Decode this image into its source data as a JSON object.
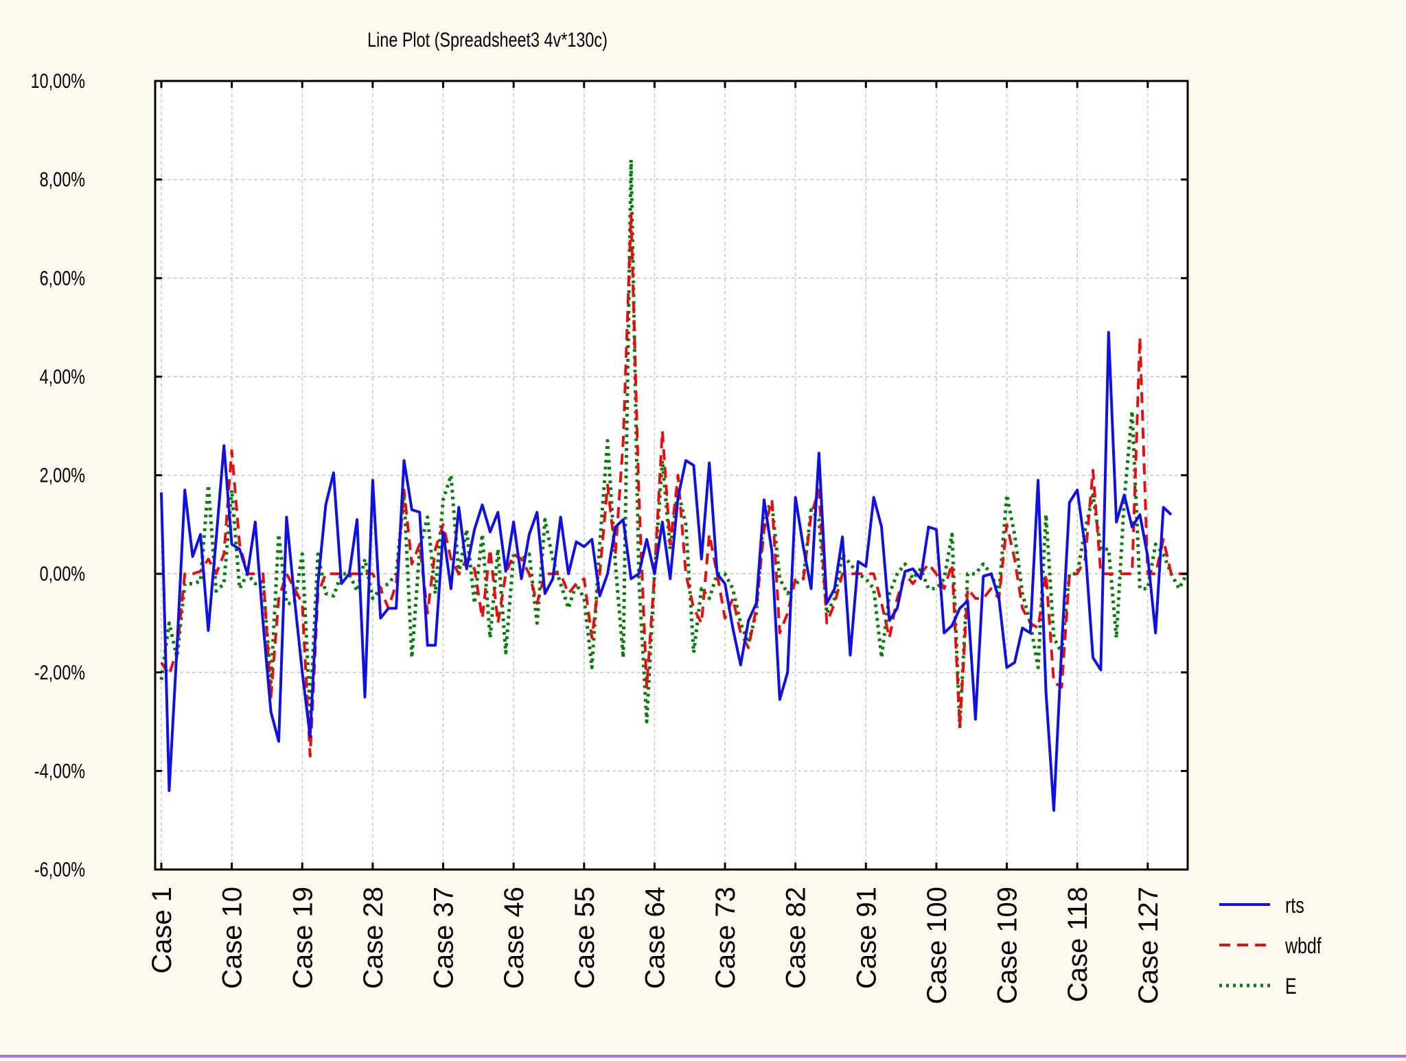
{
  "colors": {
    "background": "#fdf9ee",
    "rts": "#1010e0",
    "wbdf": "#e01010",
    "E": "#0a7a0a",
    "grid": "#c8c8c8"
  },
  "chart_data": {
    "type": "line",
    "title": "Line Plot (Spreadsheet3 4v*130c)",
    "xlabel": "",
    "ylabel": "",
    "ylim": [
      -6,
      10
    ],
    "y_ticks": [
      -6,
      -4,
      -2,
      0,
      2,
      4,
      6,
      8,
      10
    ],
    "y_tick_labels": [
      "-6,00%",
      "-4,00%",
      "-2,00%",
      "0,00%",
      "2,00%",
      "4,00%",
      "6,00%",
      "8,00%",
      "10,00%"
    ],
    "x_range": [
      1,
      130
    ],
    "x_ticks": [
      1,
      10,
      19,
      28,
      37,
      46,
      55,
      64,
      73,
      82,
      91,
      100,
      109,
      118,
      127
    ],
    "x_tick_labels": [
      "Case 1",
      "Case 10",
      "Case 19",
      "Case 28",
      "Case 37",
      "Case 46",
      "Case 55",
      "Case 64",
      "Case 73",
      "Case 82",
      "Case 91",
      "Case 100",
      "Case 109",
      "Case 118",
      "Case 127"
    ],
    "grid": true,
    "legend_position": "right",
    "series": [
      {
        "name": "rts",
        "style": "solid",
        "values": [
          1.65,
          -4.4,
          -1.5,
          1.7,
          0.35,
          0.8,
          -1.15,
          0.7,
          2.6,
          0.6,
          0.5,
          0.0,
          1.05,
          -1.0,
          -2.8,
          -3.4,
          1.15,
          -0.5,
          -2.0,
          -3.3,
          -0.2,
          1.4,
          2.05,
          -0.2,
          0.0,
          1.1,
          -2.5,
          1.9,
          -0.9,
          -0.7,
          -0.7,
          2.3,
          1.3,
          1.25,
          -1.45,
          -1.45,
          0.85,
          -0.3,
          1.35,
          0.1,
          0.9,
          1.4,
          0.85,
          1.25,
          0.05,
          1.05,
          -0.1,
          0.8,
          1.25,
          -0.4,
          -0.1,
          1.15,
          0.0,
          0.65,
          0.55,
          0.7,
          -0.45,
          0.0,
          0.95,
          1.1,
          -0.1,
          0.0,
          0.7,
          0.0,
          1.05,
          -0.1,
          1.55,
          2.3,
          2.2,
          0.3,
          2.25,
          0.0,
          -0.2,
          -1.1,
          -1.85,
          -0.95,
          -0.6,
          1.5,
          0.45,
          -2.55,
          -2.0,
          1.55,
          0.55,
          -0.3,
          2.45,
          -0.6,
          -0.3,
          0.75,
          -1.65,
          0.25,
          0.15,
          1.55,
          0.95,
          -0.95,
          -0.7,
          0.05,
          0.1,
          -0.1,
          0.95,
          0.9,
          -1.2,
          -1.05,
          -0.7,
          -0.55,
          -2.95,
          -0.05,
          0.0,
          -0.5,
          -1.9,
          -1.8,
          -1.1,
          -1.2,
          1.9,
          -2.4,
          -4.8,
          -1.5,
          1.45,
          1.7,
          0.55,
          -1.7,
          -1.95,
          4.9,
          1.05,
          1.6,
          0.95,
          1.2,
          0.35,
          -1.2,
          1.35,
          1.2
        ]
      },
      {
        "name": "wbdf",
        "style": "dashed",
        "values": [
          -1.8,
          -2.05,
          -1.55,
          0.0,
          0.0,
          0.05,
          0.3,
          0.0,
          0.4,
          2.5,
          0.6,
          0.0,
          0.0,
          0.0,
          -2.5,
          -0.5,
          0.0,
          -0.3,
          -0.6,
          -3.7,
          -0.4,
          0.0,
          0.0,
          0.0,
          0.0,
          0.0,
          0.0,
          0.0,
          -0.3,
          -0.7,
          -0.2,
          1.7,
          0.2,
          0.6,
          -0.8,
          0.5,
          1.0,
          0.3,
          0.0,
          0.3,
          0.1,
          -0.9,
          0.5,
          -1.0,
          0.0,
          0.4,
          0.3,
          0.0,
          -0.6,
          0.0,
          0.0,
          0.0,
          -0.4,
          -0.2,
          -0.1,
          -1.3,
          0.0,
          1.8,
          0.4,
          2.7,
          7.3,
          1.6,
          -2.3,
          0.0,
          2.9,
          0.6,
          2.0,
          0.0,
          -0.7,
          -1.0,
          0.8,
          0.0,
          -0.9,
          -0.5,
          -1.2,
          -1.5,
          -0.7,
          0.9,
          1.5,
          -1.2,
          -0.8,
          -0.1,
          -0.1,
          1.2,
          1.7,
          -1.0,
          -0.6,
          0.0,
          0.0,
          0.0,
          0.0,
          0.0,
          -0.6,
          -1.3,
          -0.5,
          0.0,
          -0.2,
          0.0,
          0.2,
          0.0,
          -0.3,
          0.2,
          -3.1,
          -0.3,
          -0.5,
          -0.5,
          -0.3,
          -0.5,
          1.0,
          0.3,
          -0.7,
          -1.0,
          -1.1,
          0.0,
          -2.2,
          -2.3,
          0.0,
          0.0,
          0.3,
          2.1,
          0.0,
          0.0,
          0.0,
          0.0,
          0.0,
          4.8,
          0.0,
          0.0,
          0.7,
          0.0,
          0.0,
          0.0
        ]
      },
      {
        "name": "E",
        "style": "dotted",
        "values": [
          -2.15,
          -1.0,
          -1.7,
          -0.2,
          -0.2,
          -0.15,
          1.8,
          -0.35,
          -0.2,
          1.7,
          -0.3,
          0.0,
          -0.2,
          -0.15,
          -2.2,
          0.8,
          -0.6,
          -0.6,
          0.4,
          -2.8,
          0.4,
          -0.4,
          -0.45,
          0.0,
          0.0,
          -0.35,
          0.3,
          -0.5,
          -0.3,
          -0.2,
          0.0,
          1.6,
          -1.7,
          0.5,
          1.15,
          -0.4,
          1.5,
          2.0,
          0.0,
          0.9,
          -0.6,
          0.8,
          -1.3,
          0.5,
          -1.6,
          0.4,
          0.3,
          0.4,
          -1.0,
          1.1,
          0.3,
          -0.2,
          -0.7,
          -0.2,
          -0.5,
          -1.9,
          0.6,
          2.7,
          0.2,
          -1.7,
          8.4,
          -0.1,
          -3.0,
          0.0,
          2.3,
          0.5,
          1.7,
          1.0,
          -1.6,
          -0.3,
          -0.5,
          0.0,
          0.0,
          -0.3,
          -1.0,
          -1.4,
          -0.8,
          1.3,
          1.4,
          -0.1,
          -0.4,
          -0.2,
          -0.1,
          1.3,
          1.1,
          -0.8,
          -0.5,
          0.4,
          0.2,
          0.0,
          -0.1,
          -0.3,
          -1.7,
          -0.4,
          0.0,
          0.2,
          -0.1,
          0.1,
          -0.3,
          -0.3,
          -0.1,
          0.8,
          -3.1,
          0.0,
          0.0,
          0.2,
          0.0,
          -0.4,
          1.6,
          0.8,
          -0.4,
          -1.0,
          -1.9,
          1.2,
          -1.3,
          -1.6,
          0.0,
          0.0,
          0.9,
          1.6,
          0.5,
          0.5,
          -1.3,
          1.5,
          3.3,
          -0.3,
          -0.3,
          0.6,
          0.4,
          0.0,
          -0.3,
          0.0
        ]
      }
    ]
  }
}
